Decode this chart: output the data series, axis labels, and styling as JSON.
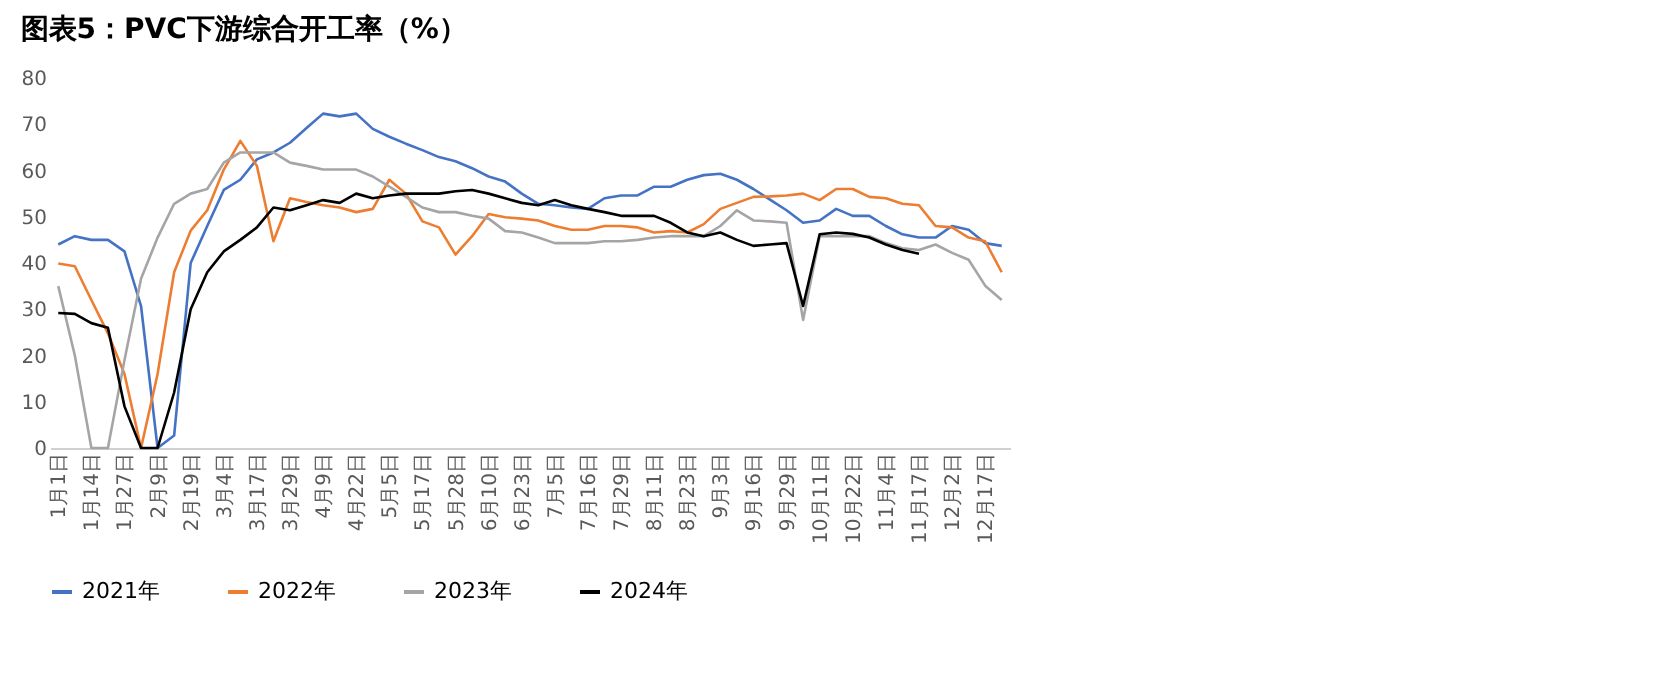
{
  "chart_data": {
    "type": "line",
    "title": "图表5：PVC下游综合开工率（%）",
    "categories": [
      "1月1日",
      null,
      "1月14日",
      null,
      "1月27日",
      null,
      "2月9日",
      null,
      "2月19日",
      null,
      "3月4日",
      null,
      "3月17日",
      null,
      "3月29日",
      null,
      "4月9日",
      null,
      "4月22日",
      null,
      "5月5日",
      null,
      "5月17日",
      null,
      "5月28日",
      null,
      "6月10日",
      null,
      "6月23日",
      null,
      "7月5日",
      null,
      "7月16日",
      null,
      "7月29日",
      null,
      "8月11日",
      null,
      "8月23日",
      null,
      "9月3日",
      null,
      "9月16日",
      null,
      "9月29日",
      null,
      "10月11日",
      null,
      "10月22日",
      null,
      "11月4日",
      null,
      "11月17日",
      null,
      "12月2日",
      null,
      "12月17日",
      null
    ],
    "series": [
      {
        "name": "2021年",
        "color": "#4472c4",
        "values": [
          44,
          45.8,
          45,
          45,
          42.5,
          30.7,
          0,
          2.7,
          40,
          48,
          55.8,
          58,
          62.4,
          63.9,
          66,
          69.2,
          72.3,
          71.7,
          72.3,
          69,
          67.3,
          65.8,
          64.4,
          62.9,
          62,
          60.5,
          58.7,
          57.6,
          55,
          52.8,
          52.5,
          52,
          51.7,
          54,
          54.6,
          54.6,
          56.5,
          56.5,
          58,
          59,
          59.3,
          58,
          56,
          53.7,
          51.4,
          48.7,
          49.2,
          51.7,
          50.2,
          50.2,
          48,
          46.2,
          45.5,
          45.5,
          48,
          47.2,
          44.3,
          43.7
        ]
      },
      {
        "name": "2022年",
        "color": "#ed7d31",
        "values": [
          39.9,
          39.3,
          32,
          24.8,
          16,
          0,
          16,
          38,
          47,
          51.4,
          60.2,
          66.4,
          61,
          44.7,
          54,
          53.2,
          52.5,
          52,
          51,
          51.7,
          58,
          55,
          49,
          47.7,
          41.8,
          45.8,
          50.6,
          49.9,
          49.6,
          49.2,
          48,
          47.2,
          47.2,
          48,
          48,
          47.7,
          46.6,
          46.9,
          46.6,
          48.4,
          51.7,
          53,
          54.3,
          54.4,
          54.6,
          55,
          53.6,
          56,
          56,
          54.3,
          54,
          52.8,
          52.5,
          48,
          47.7,
          45.5,
          44.7,
          38
        ]
      },
      {
        "name": "2023年",
        "color": "#a5a5a5",
        "values": [
          35,
          20,
          0,
          0,
          19,
          36.6,
          45.5,
          52.8,
          55,
          56,
          61.7,
          63.9,
          63.9,
          63.9,
          61.7,
          61,
          60.2,
          60.2,
          60.2,
          58.7,
          56.5,
          54.3,
          52,
          51,
          51,
          50.2,
          49.6,
          46.9,
          46.6,
          45.5,
          44.3,
          44.3,
          44.3,
          44.7,
          44.7,
          45,
          45.5,
          45.8,
          45.8,
          45.8,
          48,
          51.4,
          49.2,
          49,
          48.7,
          27.7,
          45.8,
          45.8,
          45.8,
          45.8,
          44.3,
          43.2,
          42.8,
          44,
          42.2,
          40.7,
          35.1,
          32
        ]
      },
      {
        "name": "2024年",
        "color": "#000000",
        "values": [
          29.2,
          29,
          27,
          26,
          9,
          0,
          0,
          12,
          30,
          38,
          42.5,
          45,
          47.7,
          52,
          51.4,
          52.5,
          53.6,
          53,
          55,
          54,
          54.6,
          55,
          55,
          55,
          55.5,
          55.8,
          55,
          54,
          53,
          52.5,
          53.6,
          52.5,
          51.7,
          51,
          50.2,
          50.2,
          50.2,
          48.7,
          46.6,
          45.8,
          46.6,
          45,
          43.7,
          44,
          44.3,
          30.7,
          46.2,
          46.6,
          46.3,
          45.5,
          44,
          42.8,
          42,
          null,
          null,
          null,
          null,
          null
        ]
      }
    ],
    "ylim": [
      0,
      80
    ],
    "yticks": [
      0,
      10,
      20,
      30,
      40,
      50,
      60,
      70,
      80
    ],
    "legend": "bottom"
  }
}
